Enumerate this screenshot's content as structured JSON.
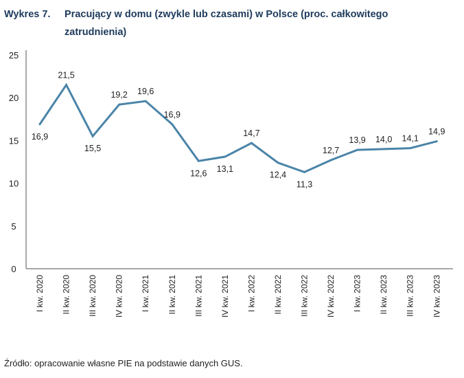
{
  "title": {
    "number": "Wykres 7.",
    "text": "Pracujący w domu (zwykle lub czasami) w Polsce (proc. całkowitego zatrudnienia)"
  },
  "source": "Źródło: opracowanie własne PIE na podstawie danych GUS.",
  "colors": {
    "line": "#4a84a8",
    "title": "#1d3a5c",
    "axis": "#8c8c8c"
  },
  "chart_data": {
    "type": "line",
    "title": "Pracujący w domu (zwykle lub czasami) w Polsce (proc. całkowitego zatrudnienia)",
    "categories": [
      "I kw. 2020",
      "II kw. 2020",
      "III kw. 2020",
      "IV kw. 2020",
      "I kw. 2021",
      "II kw. 2021",
      "III kw. 2021",
      "IV kw. 2021",
      "I kw. 2022",
      "II kw. 2022",
      "III kw. 2022",
      "IV kw. 2022",
      "I kw. 2023",
      "II kw. 2023",
      "III kw. 2023",
      "IV kw. 2023"
    ],
    "values": [
      16.9,
      21.5,
      15.5,
      19.2,
      19.6,
      16.9,
      12.6,
      13.1,
      14.7,
      12.4,
      11.3,
      12.7,
      13.9,
      14.0,
      14.1,
      14.9
    ],
    "data_labels": [
      "16,9",
      "21,5",
      "15,5",
      "19,2",
      "19,6",
      "16,9",
      "12,6",
      "13,1",
      "14,7",
      "12,4",
      "11,3",
      "12,7",
      "13,9",
      "14,0",
      "14,1",
      "14,9"
    ],
    "label_position": [
      "below",
      "above",
      "below",
      "above",
      "above",
      "above",
      "below",
      "below",
      "above",
      "below",
      "below",
      "above",
      "above",
      "above",
      "above",
      "above"
    ],
    "yticks": [
      0,
      5,
      10,
      15,
      20,
      25
    ],
    "ylim": [
      0,
      25
    ],
    "xlabel": "",
    "ylabel": "",
    "grid": false
  }
}
